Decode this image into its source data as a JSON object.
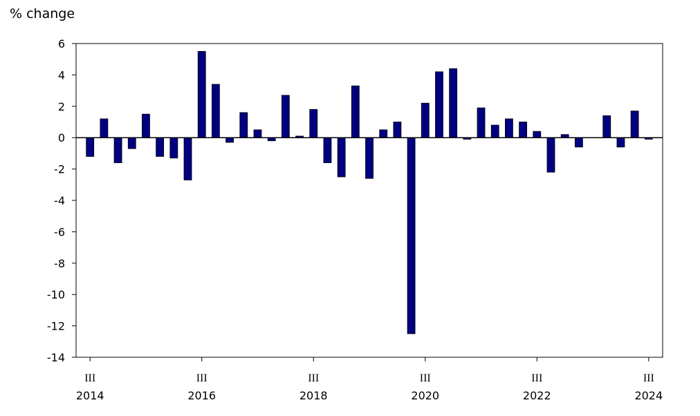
{
  "chart_data": {
    "type": "bar",
    "y_label": "% change",
    "categories": [
      [
        "III",
        "2014"
      ],
      null,
      null,
      null,
      null,
      null,
      null,
      null,
      [
        "III",
        "2016"
      ],
      null,
      null,
      null,
      null,
      null,
      null,
      null,
      [
        "III",
        "2018"
      ],
      null,
      null,
      null,
      null,
      null,
      null,
      null,
      [
        "III",
        "2020"
      ],
      null,
      null,
      null,
      null,
      null,
      null,
      null,
      [
        "III",
        "2022"
      ],
      null,
      null,
      null,
      null,
      null,
      null,
      null,
      [
        "III",
        "2024"
      ]
    ],
    "values": [
      -1.2,
      1.2,
      -1.6,
      -0.7,
      1.5,
      -1.2,
      -1.3,
      -2.7,
      5.5,
      3.4,
      -0.3,
      1.6,
      0.5,
      -0.2,
      2.7,
      0.1,
      1.8,
      -1.6,
      -2.5,
      3.3,
      -2.6,
      0.5,
      1.0,
      -12.5,
      2.2,
      4.2,
      4.4,
      -0.1,
      1.9,
      0.8,
      1.2,
      1.0,
      0.4,
      -2.2,
      0.2,
      -0.6,
      0.0,
      1.4,
      -0.6,
      1.7,
      -0.1
    ],
    "color": "#000080",
    "ylim": [
      -14,
      6
    ],
    "yticks": [
      -14,
      -12,
      -10,
      -8,
      -6,
      -4,
      -2,
      0,
      2,
      4,
      6
    ]
  }
}
